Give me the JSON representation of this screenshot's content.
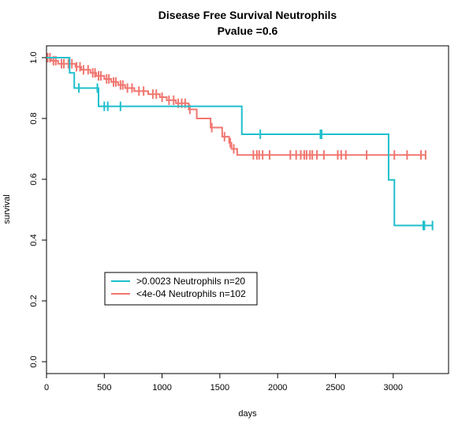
{
  "chart_data": {
    "type": "line",
    "title": "Disease Free Survival Neutrophils",
    "subtitle": "Pvalue =0.6",
    "xlabel": "days",
    "ylabel": "survival",
    "xlim": [
      0,
      3400
    ],
    "ylim": [
      0,
      1.0
    ],
    "x_ticks": [
      0,
      500,
      1000,
      1500,
      2000,
      2500,
      3000
    ],
    "y_ticks": [
      0.0,
      0.2,
      0.4,
      0.6,
      0.8,
      1.0
    ],
    "x_tick_labels": [
      "0",
      "500",
      "1000",
      "1500",
      "2000",
      "2500",
      "3000"
    ],
    "y_tick_labels": [
      "0.0",
      "0.2",
      "0.4",
      "0.6",
      "0.8",
      "1.0"
    ],
    "grid": false,
    "legend_position": "bottom-left",
    "series": [
      {
        "name": ">0.0023 Neutrophils n=20",
        "color": "#1fbfcc",
        "steps": [
          [
            0,
            1.0
          ],
          [
            200,
            0.95
          ],
          [
            240,
            0.9
          ],
          [
            450,
            0.84
          ],
          [
            1690,
            0.748
          ],
          [
            2960,
            0.598
          ],
          [
            3010,
            0.448
          ],
          [
            3340,
            0.448
          ]
        ],
        "censors": [
          [
            280,
            0.9
          ],
          [
            440,
            0.9
          ],
          [
            500,
            0.84
          ],
          [
            530,
            0.84
          ],
          [
            640,
            0.84
          ],
          [
            1850,
            0.748
          ],
          [
            2370,
            0.748
          ],
          [
            2380,
            0.748
          ],
          [
            3260,
            0.448
          ],
          [
            3270,
            0.448
          ],
          [
            3340,
            0.448
          ]
        ]
      },
      {
        "name": "<4e-04 Neutrophils n=102",
        "color": "#f07670",
        "steps": [
          [
            0,
            1.0
          ],
          [
            40,
            0.99
          ],
          [
            100,
            0.98
          ],
          [
            250,
            0.97
          ],
          [
            300,
            0.96
          ],
          [
            380,
            0.95
          ],
          [
            430,
            0.94
          ],
          [
            500,
            0.93
          ],
          [
            560,
            0.92
          ],
          [
            620,
            0.91
          ],
          [
            680,
            0.9
          ],
          [
            760,
            0.89
          ],
          [
            880,
            0.88
          ],
          [
            980,
            0.87
          ],
          [
            1040,
            0.86
          ],
          [
            1120,
            0.85
          ],
          [
            1230,
            0.83
          ],
          [
            1300,
            0.8
          ],
          [
            1420,
            0.77
          ],
          [
            1520,
            0.74
          ],
          [
            1580,
            0.72
          ],
          [
            1600,
            0.7
          ],
          [
            1650,
            0.68
          ],
          [
            3280,
            0.68
          ]
        ],
        "censors": [
          [
            10,
            1.0
          ],
          [
            30,
            1.0
          ],
          [
            60,
            0.99
          ],
          [
            80,
            0.99
          ],
          [
            130,
            0.98
          ],
          [
            150,
            0.98
          ],
          [
            190,
            0.98
          ],
          [
            220,
            0.98
          ],
          [
            260,
            0.97
          ],
          [
            290,
            0.97
          ],
          [
            320,
            0.96
          ],
          [
            360,
            0.96
          ],
          [
            400,
            0.95
          ],
          [
            420,
            0.95
          ],
          [
            450,
            0.94
          ],
          [
            470,
            0.94
          ],
          [
            520,
            0.93
          ],
          [
            540,
            0.93
          ],
          [
            580,
            0.92
          ],
          [
            600,
            0.92
          ],
          [
            640,
            0.91
          ],
          [
            660,
            0.91
          ],
          [
            700,
            0.9
          ],
          [
            740,
            0.9
          ],
          [
            800,
            0.89
          ],
          [
            840,
            0.89
          ],
          [
            920,
            0.88
          ],
          [
            950,
            0.88
          ],
          [
            1000,
            0.87
          ],
          [
            1060,
            0.86
          ],
          [
            1100,
            0.86
          ],
          [
            1140,
            0.85
          ],
          [
            1170,
            0.85
          ],
          [
            1200,
            0.85
          ],
          [
            1240,
            0.83
          ],
          [
            1430,
            0.77
          ],
          [
            1540,
            0.74
          ],
          [
            1590,
            0.72
          ],
          [
            1620,
            0.7
          ],
          [
            1790,
            0.68
          ],
          [
            1820,
            0.68
          ],
          [
            1840,
            0.68
          ],
          [
            1870,
            0.68
          ],
          [
            1930,
            0.68
          ],
          [
            2110,
            0.68
          ],
          [
            2160,
            0.68
          ],
          [
            2200,
            0.68
          ],
          [
            2230,
            0.68
          ],
          [
            2250,
            0.68
          ],
          [
            2280,
            0.68
          ],
          [
            2300,
            0.68
          ],
          [
            2340,
            0.68
          ],
          [
            2400,
            0.68
          ],
          [
            2520,
            0.68
          ],
          [
            2550,
            0.68
          ],
          [
            2590,
            0.68
          ],
          [
            2770,
            0.68
          ],
          [
            3010,
            0.68
          ],
          [
            3120,
            0.68
          ],
          [
            3240,
            0.68
          ],
          [
            3280,
            0.68
          ]
        ]
      }
    ]
  }
}
